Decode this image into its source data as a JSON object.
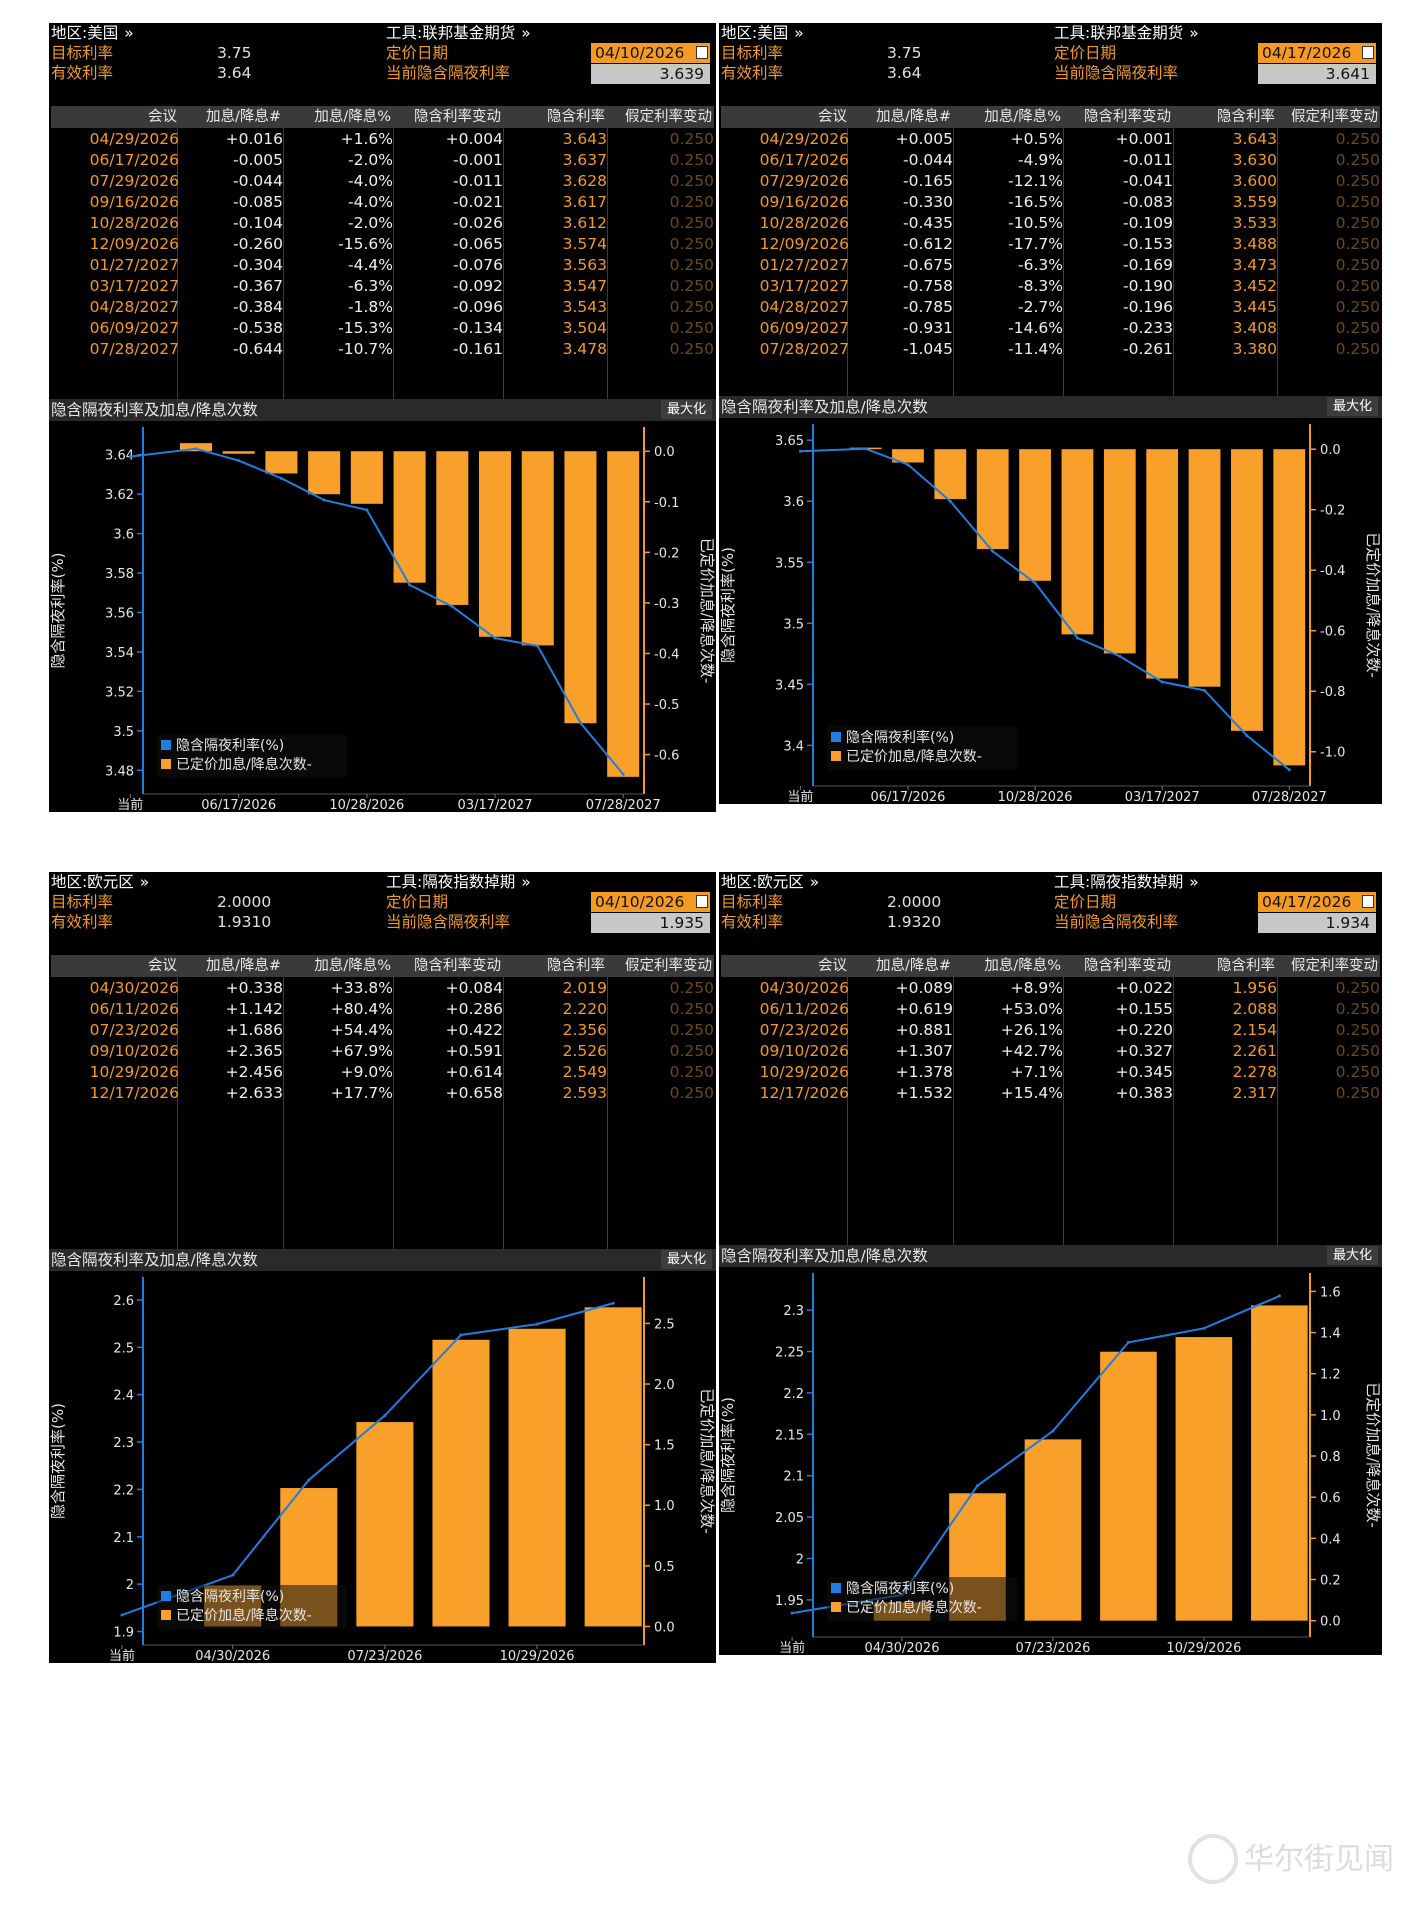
{
  "common": {
    "region_label": "地区:",
    "tool_label": "工具:",
    "target_label": "目标利率",
    "effective_label": "有效利率",
    "pricing_date_label": "定价日期",
    "implied_overnight_label": "当前隐含隔夜利率",
    "columns": [
      "会议",
      "加息/降息#",
      "加息/降息%",
      "隐含利率变动",
      "隐含利率",
      "假定利率变动"
    ],
    "chart_title": "隐含隔夜利率及加息/降息次数",
    "maximize": "最大化",
    "legend_line": "隐含隔夜利率(%)",
    "legend_bar": "已定价加息/降息次数-",
    "y_left_label": "隐含隔夜利率(%)",
    "y_right_label": "已定价加息/降息次数-",
    "x_current": "当前",
    "arrow": "»"
  },
  "colors": {
    "bar": "#f8a02a",
    "line": "#1f7ee0",
    "accent": "#f59a23",
    "background": "#000000"
  },
  "panels": [
    {
      "region": "美国",
      "tool": "联邦基金期货",
      "target_rate": "3.75",
      "effective_rate": "3.64",
      "pricing_date": "04/10/2026",
      "implied_overnight": "3.639",
      "rows": [
        [
          "04/29/2026",
          "+0.016",
          "+1.6%",
          "+0.004",
          "3.643",
          "0.250"
        ],
        [
          "06/17/2026",
          "-0.005",
          "-2.0%",
          "-0.001",
          "3.637",
          "0.250"
        ],
        [
          "07/29/2026",
          "-0.044",
          "-4.0%",
          "-0.011",
          "3.628",
          "0.250"
        ],
        [
          "09/16/2026",
          "-0.085",
          "-4.0%",
          "-0.021",
          "3.617",
          "0.250"
        ],
        [
          "10/28/2026",
          "-0.104",
          "-2.0%",
          "-0.026",
          "3.612",
          "0.250"
        ],
        [
          "12/09/2026",
          "-0.260",
          "-15.6%",
          "-0.065",
          "3.574",
          "0.250"
        ],
        [
          "01/27/2027",
          "-0.304",
          "-4.4%",
          "-0.076",
          "3.563",
          "0.250"
        ],
        [
          "03/17/2027",
          "-0.367",
          "-6.3%",
          "-0.092",
          "3.547",
          "0.250"
        ],
        [
          "04/28/2027",
          "-0.384",
          "-1.8%",
          "-0.096",
          "3.543",
          "0.250"
        ],
        [
          "06/09/2027",
          "-0.538",
          "-15.3%",
          "-0.134",
          "3.504",
          "0.250"
        ],
        [
          "07/28/2027",
          "-0.644",
          "-10.7%",
          "-0.161",
          "3.478",
          "0.250"
        ]
      ],
      "chart_data": {
        "type": "bar",
        "title": "隐含隔夜利率及加息/降息次数",
        "categories": [
          "当前",
          "04/29/2026",
          "06/17/2026",
          "07/29/2026",
          "09/16/2026",
          "10/28/2026",
          "12/09/2026",
          "01/27/2027",
          "03/17/2027",
          "04/28/2027",
          "06/09/2027",
          "07/28/2027"
        ],
        "x_tick_labels": [
          "当前",
          "06/17/2026",
          "10/28/2026",
          "03/17/2027",
          "07/28/2027"
        ],
        "series": [
          {
            "name": "隐含隔夜利率(%)",
            "type": "line",
            "axis": "left",
            "values": [
              3.639,
              3.643,
              3.637,
              3.628,
              3.617,
              3.612,
              3.574,
              3.563,
              3.547,
              3.543,
              3.504,
              3.478
            ]
          },
          {
            "name": "已定价加息/降息次数-",
            "type": "bar",
            "axis": "right",
            "values": [
              null,
              0.016,
              -0.005,
              -0.044,
              -0.085,
              -0.104,
              -0.26,
              -0.304,
              -0.367,
              -0.384,
              -0.538,
              -0.644
            ]
          }
        ],
        "ylabel_left": "隐含隔夜利率(%)",
        "ylabel_right": "已定价加息/降息次数-",
        "ylim_left": [
          3.47,
          3.652
        ],
        "yticks_left": [
          3.48,
          3.5,
          3.52,
          3.54,
          3.56,
          3.58,
          3.6,
          3.62,
          3.64
        ],
        "ylim_right": [
          -0.67,
          0.04
        ],
        "yticks_right": [
          0.0,
          -0.1,
          -0.2,
          -0.3,
          -0.4,
          -0.5,
          -0.6
        ],
        "legend": "bottom-left"
      }
    },
    {
      "region": "美国",
      "tool": "联邦基金期货",
      "target_rate": "3.75",
      "effective_rate": "3.64",
      "pricing_date": "04/17/2026",
      "implied_overnight": "3.641",
      "rows": [
        [
          "04/29/2026",
          "+0.005",
          "+0.5%",
          "+0.001",
          "3.643",
          "0.250"
        ],
        [
          "06/17/2026",
          "-0.044",
          "-4.9%",
          "-0.011",
          "3.630",
          "0.250"
        ],
        [
          "07/29/2026",
          "-0.165",
          "-12.1%",
          "-0.041",
          "3.600",
          "0.250"
        ],
        [
          "09/16/2026",
          "-0.330",
          "-16.5%",
          "-0.083",
          "3.559",
          "0.250"
        ],
        [
          "10/28/2026",
          "-0.435",
          "-10.5%",
          "-0.109",
          "3.533",
          "0.250"
        ],
        [
          "12/09/2026",
          "-0.612",
          "-17.7%",
          "-0.153",
          "3.488",
          "0.250"
        ],
        [
          "01/27/2027",
          "-0.675",
          "-6.3%",
          "-0.169",
          "3.473",
          "0.250"
        ],
        [
          "03/17/2027",
          "-0.758",
          "-8.3%",
          "-0.190",
          "3.452",
          "0.250"
        ],
        [
          "04/28/2027",
          "-0.785",
          "-2.7%",
          "-0.196",
          "3.445",
          "0.250"
        ],
        [
          "06/09/2027",
          "-0.931",
          "-14.6%",
          "-0.233",
          "3.408",
          "0.250"
        ],
        [
          "07/28/2027",
          "-1.045",
          "-11.4%",
          "-0.261",
          "3.380",
          "0.250"
        ]
      ],
      "chart_data": {
        "type": "bar",
        "title": "隐含隔夜利率及加息/降息次数",
        "categories": [
          "当前",
          "04/29/2026",
          "06/17/2026",
          "07/29/2026",
          "09/16/2026",
          "10/28/2026",
          "12/09/2026",
          "01/27/2027",
          "03/17/2027",
          "04/28/2027",
          "06/09/2027",
          "07/28/2027"
        ],
        "x_tick_labels": [
          "当前",
          "06/17/2026",
          "10/28/2026",
          "03/17/2027",
          "07/28/2027"
        ],
        "series": [
          {
            "name": "隐含隔夜利率(%)",
            "type": "line",
            "axis": "left",
            "values": [
              3.641,
              3.643,
              3.63,
              3.6,
              3.559,
              3.533,
              3.488,
              3.473,
              3.452,
              3.445,
              3.408,
              3.38
            ]
          },
          {
            "name": "已定价加息/降息次数-",
            "type": "bar",
            "axis": "right",
            "values": [
              null,
              0.005,
              -0.044,
              -0.165,
              -0.33,
              -0.435,
              -0.612,
              -0.675,
              -0.758,
              -0.785,
              -0.931,
              -1.045
            ]
          }
        ],
        "ylabel_left": "隐含隔夜利率(%)",
        "ylabel_right": "已定价加息/降息次数-",
        "ylim_left": [
          3.37,
          3.66
        ],
        "yticks_left": [
          3.4,
          3.45,
          3.5,
          3.55,
          3.6,
          3.65
        ],
        "ylim_right": [
          -1.1,
          0.07
        ],
        "yticks_right": [
          0.0,
          -0.2,
          -0.4,
          -0.6,
          -0.8,
          -1.0
        ],
        "legend": "bottom-left"
      }
    },
    {
      "region": "欧元区",
      "tool": "隔夜指数掉期",
      "target_rate": "2.0000",
      "effective_rate": "1.9310",
      "pricing_date": "04/10/2026",
      "implied_overnight": "1.935",
      "rows": [
        [
          "04/30/2026",
          "+0.338",
          "+33.8%",
          "+0.084",
          "2.019",
          "0.250"
        ],
        [
          "06/11/2026",
          "+1.142",
          "+80.4%",
          "+0.286",
          "2.220",
          "0.250"
        ],
        [
          "07/23/2026",
          "+1.686",
          "+54.4%",
          "+0.422",
          "2.356",
          "0.250"
        ],
        [
          "09/10/2026",
          "+2.365",
          "+67.9%",
          "+0.591",
          "2.526",
          "0.250"
        ],
        [
          "10/29/2026",
          "+2.456",
          "+9.0%",
          "+0.614",
          "2.549",
          "0.250"
        ],
        [
          "12/17/2026",
          "+2.633",
          "+17.7%",
          "+0.658",
          "2.593",
          "0.250"
        ]
      ],
      "chart_data": {
        "type": "bar",
        "title": "隐含隔夜利率及加息/降息次数",
        "categories": [
          "当前",
          "04/30/2026",
          "06/11/2026",
          "07/23/2026",
          "09/10/2026",
          "10/29/2026",
          "12/17/2026"
        ],
        "x_tick_labels": [
          "当前",
          "04/30/2026",
          "07/23/2026",
          "10/29/2026"
        ],
        "series": [
          {
            "name": "隐含隔夜利率(%)",
            "type": "line",
            "axis": "left",
            "values": [
              1.935,
              2.019,
              2.22,
              2.356,
              2.526,
              2.549,
              2.593
            ]
          },
          {
            "name": "已定价加息/降息次数-",
            "type": "bar",
            "axis": "right",
            "values": [
              null,
              0.338,
              1.142,
              1.686,
              2.365,
              2.456,
              2.633
            ]
          }
        ],
        "ylabel_left": "隐含隔夜利率(%)",
        "ylabel_right": "已定价加息/降息次数-",
        "ylim_left": [
          1.88,
          2.64
        ],
        "yticks_left": [
          1.9,
          2.0,
          2.1,
          2.2,
          2.3,
          2.4,
          2.5,
          2.6
        ],
        "ylim_right": [
          -0.12,
          2.85
        ],
        "yticks_right": [
          0.0,
          0.5,
          1.0,
          1.5,
          2.0,
          2.5
        ],
        "legend": "bottom-left"
      }
    },
    {
      "region": "欧元区",
      "tool": "隔夜指数掉期",
      "target_rate": "2.0000",
      "effective_rate": "1.9320",
      "pricing_date": "04/17/2026",
      "implied_overnight": "1.934",
      "rows": [
        [
          "04/30/2026",
          "+0.089",
          "+8.9%",
          "+0.022",
          "1.956",
          "0.250"
        ],
        [
          "06/11/2026",
          "+0.619",
          "+53.0%",
          "+0.155",
          "2.088",
          "0.250"
        ],
        [
          "07/23/2026",
          "+0.881",
          "+26.1%",
          "+0.220",
          "2.154",
          "0.250"
        ],
        [
          "09/10/2026",
          "+1.307",
          "+42.7%",
          "+0.327",
          "2.261",
          "0.250"
        ],
        [
          "10/29/2026",
          "+1.378",
          "+7.1%",
          "+0.345",
          "2.278",
          "0.250"
        ],
        [
          "12/17/2026",
          "+1.532",
          "+15.4%",
          "+0.383",
          "2.317",
          "0.250"
        ]
      ],
      "chart_data": {
        "type": "bar",
        "title": "隐含隔夜利率及加息/降息次数",
        "categories": [
          "当前",
          "04/30/2026",
          "06/11/2026",
          "07/23/2026",
          "09/10/2026",
          "10/29/2026",
          "12/17/2026"
        ],
        "x_tick_labels": [
          "当前",
          "04/30/2026",
          "07/23/2026",
          "10/29/2026"
        ],
        "series": [
          {
            "name": "隐含隔夜利率(%)",
            "type": "line",
            "axis": "left",
            "values": [
              1.934,
              1.956,
              2.088,
              2.154,
              2.261,
              2.278,
              2.317
            ]
          },
          {
            "name": "已定价加息/降息次数-",
            "type": "bar",
            "axis": "right",
            "values": [
              null,
              0.089,
              0.619,
              0.881,
              1.307,
              1.378,
              1.532
            ]
          }
        ],
        "ylabel_left": "隐含隔夜利率(%)",
        "ylabel_right": "已定价加息/降息次数-",
        "ylim_left": [
          1.91,
          2.34
        ],
        "yticks_left": [
          1.95,
          2.0,
          2.05,
          2.1,
          2.15,
          2.2,
          2.25,
          2.3
        ],
        "ylim_right": [
          -0.06,
          1.67
        ],
        "yticks_right": [
          0.0,
          0.2,
          0.4,
          0.6,
          0.8,
          1.0,
          1.2,
          1.4,
          1.6
        ],
        "legend": "bottom-left"
      }
    }
  ],
  "watermark": "华尔街见闻"
}
